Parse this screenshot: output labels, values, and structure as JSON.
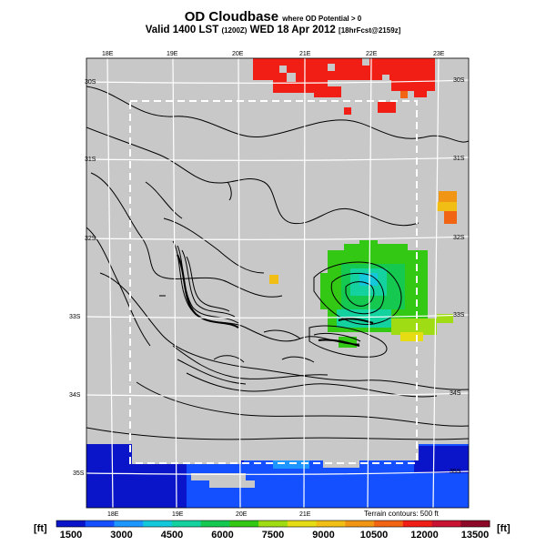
{
  "title": {
    "main": "OD Cloudbase",
    "qualifier": "where OD Potential > 0",
    "valid_prefix": "Valid 1400 LST",
    "valid_z": "(1200Z)",
    "valid_date": "WED 18 Apr 2012",
    "forecast": "[18hrFcst@2159z]"
  },
  "map": {
    "lon_labels_top": [
      "18E",
      "19E",
      "20E",
      "21E",
      "22E",
      "23E"
    ],
    "lon_labels_bottom": [
      "18E",
      "19E",
      "20E",
      "21E"
    ],
    "lat_labels_left": [
      "30S",
      "31S",
      "32S",
      "33S",
      "34S",
      "35S"
    ],
    "lat_labels_right": [
      "30S",
      "31S",
      "32S",
      "33S",
      "34S",
      "35S"
    ],
    "terrain_note": "Terrain contours: 500 ft",
    "background_color": "#c8c8c8"
  },
  "colorbar": {
    "unit_left": "[ft]",
    "unit_right": "[ft]",
    "ticks": [
      "1500",
      "3000",
      "4500",
      "6000",
      "7500",
      "9000",
      "10500",
      "12000",
      "13500"
    ],
    "colors": [
      "#0a14c8",
      "#1450ff",
      "#1e96ff",
      "#14c8dc",
      "#14d2a0",
      "#14c850",
      "#32c814",
      "#a0dc14",
      "#e6dc14",
      "#f0be14",
      "#f09614",
      "#f06414",
      "#f01e14",
      "#c81432",
      "#8c0a28"
    ]
  }
}
